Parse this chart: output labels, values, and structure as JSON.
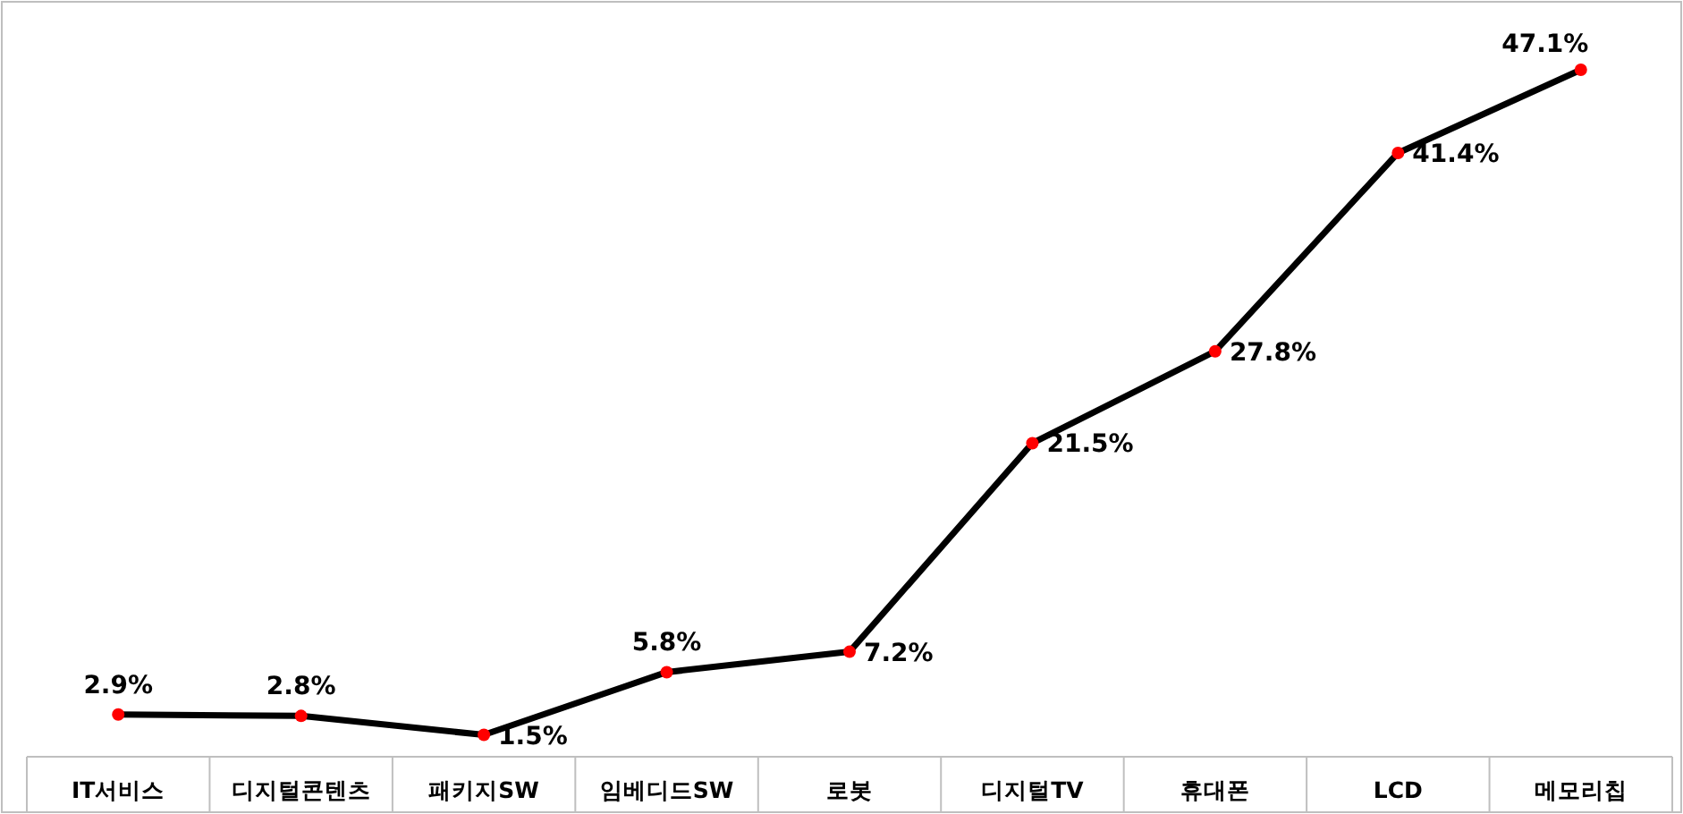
{
  "chart_data": {
    "type": "line",
    "categories": [
      "IT서비스",
      "디지털콘텐츠",
      "패키지SW",
      "임베디드SW",
      "로봇",
      "디지털TV",
      "휴대폰",
      "LCD",
      "메모리칩"
    ],
    "series": [
      {
        "color": "#000000",
        "values": [
          2.9,
          2.8,
          1.5,
          5.8,
          7.2,
          21.5,
          27.8,
          41.4,
          47.1
        ],
        "value_labels": [
          "2.9%",
          "2.8%",
          "1.5%",
          "5.8%",
          "7.2%",
          "21.5%",
          "27.8%",
          "41.4%",
          "47.1%"
        ]
      }
    ],
    "marker": "circle",
    "line_style": "solid"
  }
}
